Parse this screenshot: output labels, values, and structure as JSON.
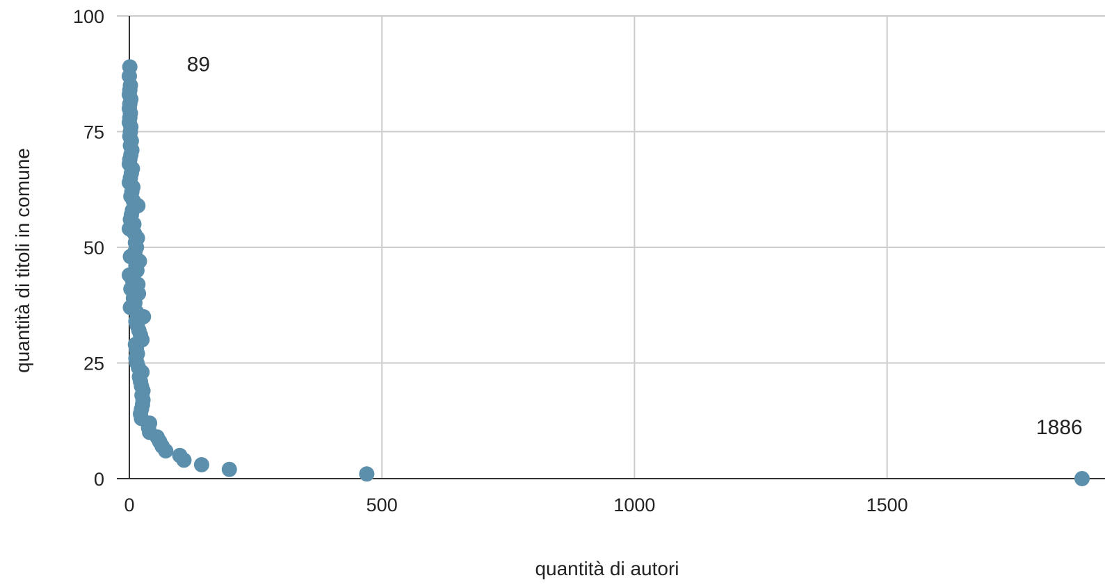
{
  "chart_data": {
    "type": "scatter",
    "title": "",
    "xlabel": "quantità di autori",
    "ylabel": "quantità di titoli in comune",
    "xlim": [
      0,
      1886
    ],
    "ylim": [
      0,
      100
    ],
    "x_ticks": [
      "0",
      "500",
      "1000",
      "1500"
    ],
    "y_ticks": [
      "0",
      "25",
      "50",
      "75",
      "100"
    ],
    "grid": true,
    "legend": "none",
    "colors": {
      "marker": "#5b8fab",
      "grid": "#cccccc",
      "axis": "#333333"
    },
    "series": [
      {
        "points": [
          [
            1,
            89
          ],
          [
            0,
            87
          ],
          [
            2,
            85
          ],
          [
            1,
            84
          ],
          [
            0,
            83
          ],
          [
            3,
            82
          ],
          [
            1,
            81
          ],
          [
            0,
            80
          ],
          [
            2,
            79
          ],
          [
            1,
            78
          ],
          [
            0,
            77
          ],
          [
            3,
            76
          ],
          [
            2,
            75
          ],
          [
            1,
            74
          ],
          [
            4,
            73
          ],
          [
            2,
            72
          ],
          [
            5,
            71
          ],
          [
            3,
            70
          ],
          [
            1,
            69
          ],
          [
            0,
            68
          ],
          [
            6,
            67
          ],
          [
            4,
            66
          ],
          [
            2,
            65
          ],
          [
            0,
            64
          ],
          [
            7,
            63
          ],
          [
            5,
            62
          ],
          [
            3,
            61
          ],
          [
            8,
            60
          ],
          [
            17,
            59
          ],
          [
            6,
            58
          ],
          [
            4,
            57
          ],
          [
            2,
            56
          ],
          [
            9,
            55
          ],
          [
            0,
            54
          ],
          [
            10,
            53
          ],
          [
            16,
            52
          ],
          [
            12,
            51
          ],
          [
            14,
            50
          ],
          [
            11,
            49
          ],
          [
            2,
            48
          ],
          [
            20,
            47
          ],
          [
            13,
            46
          ],
          [
            15,
            45
          ],
          [
            0,
            44
          ],
          [
            6,
            43
          ],
          [
            17,
            42
          ],
          [
            3,
            41
          ],
          [
            18,
            40
          ],
          [
            8,
            39
          ],
          [
            11,
            38
          ],
          [
            2,
            37
          ],
          [
            14,
            36
          ],
          [
            28,
            35
          ],
          [
            13,
            34
          ],
          [
            16,
            33
          ],
          [
            19,
            32
          ],
          [
            22,
            31
          ],
          [
            25,
            30
          ],
          [
            12,
            29
          ],
          [
            14,
            28
          ],
          [
            16,
            27
          ],
          [
            13,
            26
          ],
          [
            15,
            25
          ],
          [
            18,
            24
          ],
          [
            25,
            23
          ],
          [
            20,
            22
          ],
          [
            22,
            21
          ],
          [
            24,
            20
          ],
          [
            27,
            19
          ],
          [
            25,
            18
          ],
          [
            27,
            17
          ],
          [
            26,
            16
          ],
          [
            24,
            15
          ],
          [
            22,
            14
          ],
          [
            24,
            13
          ],
          [
            40,
            12
          ],
          [
            38,
            11
          ],
          [
            40,
            10
          ],
          [
            55,
            9
          ],
          [
            60,
            8
          ],
          [
            65,
            7
          ],
          [
            72,
            6
          ],
          [
            100,
            5
          ],
          [
            108,
            4
          ],
          [
            143,
            3
          ],
          [
            198,
            2
          ],
          [
            470,
            1
          ],
          [
            1886,
            0
          ]
        ]
      }
    ],
    "annotations": [
      {
        "text": "89",
        "x": 1,
        "y": 89
      },
      {
        "text": "1886",
        "x": 1886,
        "y": 0
      }
    ]
  }
}
